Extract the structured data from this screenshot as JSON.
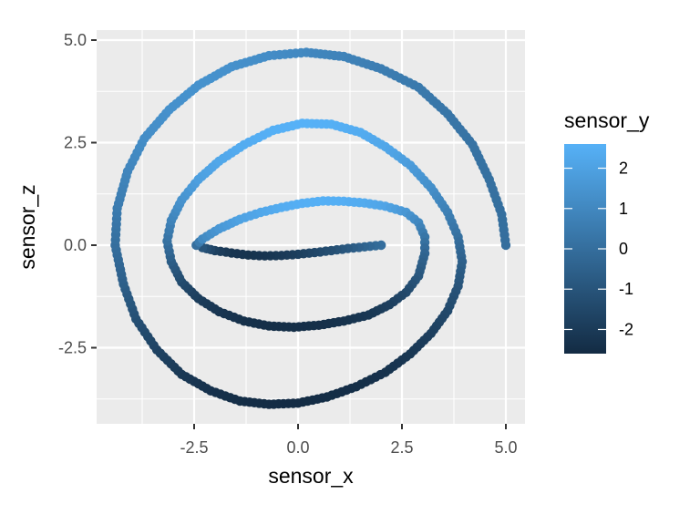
{
  "chart_data": {
    "type": "scatter",
    "xlabel": "sensor_x",
    "ylabel": "sensor_z",
    "xlim": [
      -4.6,
      5.5
    ],
    "ylim": [
      -4.3,
      5.1
    ],
    "x_ticks": [
      -2.5,
      0.0,
      2.5,
      5.0
    ],
    "x_tick_labels": [
      "-2.5",
      "0.0",
      "2.5",
      "5.0"
    ],
    "y_ticks": [
      -2.5,
      0.0,
      2.5,
      5.0
    ],
    "y_tick_labels": [
      "-2.5",
      "0.0",
      "2.5",
      "5.0"
    ],
    "grid": true,
    "legend": {
      "title": "sensor_y",
      "placement": "right",
      "type": "colorbar",
      "range": [
        -2.6,
        2.6
      ],
      "ticks": [
        2,
        1,
        0,
        -1,
        -2
      ],
      "tick_labels": [
        "2",
        "1",
        "0",
        "-1",
        "-2"
      ],
      "low_color": "#132b43",
      "high_color": "#56b1f7"
    },
    "panel_background": "#ebebeb",
    "series": [
      {
        "description_points_generated": false,
        "points": [
          [
            2.0,
            0.0,
            0.0
          ],
          [
            1.6,
            -0.04,
            -0.4
          ],
          [
            1.2,
            -0.08,
            -0.8
          ],
          [
            0.8,
            -0.13,
            -1.2
          ],
          [
            0.4,
            -0.18,
            -1.5
          ],
          [
            0.0,
            -0.22,
            -1.8
          ],
          [
            -0.4,
            -0.25,
            -2.0
          ],
          [
            -0.8,
            -0.26,
            -2.2
          ],
          [
            -1.2,
            -0.24,
            -2.3
          ],
          [
            -1.6,
            -0.19,
            -2.2
          ],
          [
            -2.0,
            -0.13,
            -1.8
          ],
          [
            -2.3,
            -0.06,
            -1.0
          ],
          [
            -2.45,
            0.0,
            0.0
          ],
          [
            -2.3,
            0.15,
            1.0
          ],
          [
            -1.9,
            0.4,
            1.6
          ],
          [
            -1.4,
            0.63,
            2.0
          ],
          [
            -0.9,
            0.8,
            2.2
          ],
          [
            -0.4,
            0.92,
            2.4
          ],
          [
            0.1,
            1.02,
            2.5
          ],
          [
            0.6,
            1.08,
            2.55
          ],
          [
            1.1,
            1.07,
            2.5
          ],
          [
            1.6,
            1.03,
            2.35
          ],
          [
            2.1,
            0.95,
            2.1
          ],
          [
            2.6,
            0.8,
            1.6
          ],
          [
            2.9,
            0.55,
            1.0
          ],
          [
            3.05,
            0.2,
            0.3
          ],
          [
            3.05,
            -0.2,
            -0.3
          ],
          [
            2.9,
            -0.75,
            -0.9
          ],
          [
            2.6,
            -1.15,
            -1.4
          ],
          [
            2.2,
            -1.45,
            -1.8
          ],
          [
            1.7,
            -1.7,
            -2.1
          ],
          [
            1.1,
            -1.85,
            -2.3
          ],
          [
            0.5,
            -1.95,
            -2.4
          ],
          [
            -0.1,
            -2.0,
            -2.45
          ],
          [
            -0.7,
            -1.97,
            -2.45
          ],
          [
            -1.3,
            -1.85,
            -2.4
          ],
          [
            -1.9,
            -1.62,
            -2.2
          ],
          [
            -2.4,
            -1.3,
            -1.9
          ],
          [
            -2.8,
            -0.9,
            -1.4
          ],
          [
            -3.05,
            -0.4,
            -0.7
          ],
          [
            -3.15,
            0.1,
            0.1
          ],
          [
            -3.05,
            0.6,
            0.8
          ],
          [
            -2.8,
            1.1,
            1.4
          ],
          [
            -2.4,
            1.6,
            1.9
          ],
          [
            -1.9,
            2.05,
            2.2
          ],
          [
            -1.3,
            2.45,
            2.4
          ],
          [
            -0.6,
            2.8,
            2.55
          ],
          [
            0.1,
            2.97,
            2.6
          ],
          [
            0.8,
            2.95,
            2.55
          ],
          [
            1.5,
            2.75,
            2.4
          ],
          [
            2.1,
            2.4,
            2.2
          ],
          [
            2.7,
            1.95,
            1.8
          ],
          [
            3.2,
            1.4,
            1.3
          ],
          [
            3.6,
            0.8,
            0.7
          ],
          [
            3.85,
            0.2,
            0.1
          ],
          [
            3.95,
            -0.4,
            -0.5
          ],
          [
            3.85,
            -1.0,
            -1.0
          ],
          [
            3.6,
            -1.6,
            -1.4
          ],
          [
            3.2,
            -2.15,
            -1.8
          ],
          [
            2.7,
            -2.65,
            -2.1
          ],
          [
            2.1,
            -3.1,
            -2.3
          ],
          [
            1.4,
            -3.45,
            -2.45
          ],
          [
            0.7,
            -3.7,
            -2.5
          ],
          [
            0.0,
            -3.85,
            -2.55
          ],
          [
            -0.7,
            -3.88,
            -2.55
          ],
          [
            -1.4,
            -3.8,
            -2.5
          ],
          [
            -2.1,
            -3.55,
            -2.35
          ],
          [
            -2.8,
            -3.15,
            -2.1
          ],
          [
            -3.4,
            -2.55,
            -1.7
          ],
          [
            -3.9,
            -1.8,
            -1.2
          ],
          [
            -4.2,
            -0.95,
            -0.6
          ],
          [
            -4.4,
            0.0,
            0.0
          ],
          [
            -4.35,
            0.9,
            0.5
          ],
          [
            -4.1,
            1.8,
            0.9
          ],
          [
            -3.7,
            2.6,
            1.2
          ],
          [
            -3.1,
            3.3,
            1.35
          ],
          [
            -2.4,
            3.9,
            1.4
          ],
          [
            -1.6,
            4.35,
            1.35
          ],
          [
            -0.7,
            4.62,
            1.2
          ],
          [
            0.2,
            4.7,
            1.0
          ],
          [
            1.1,
            4.6,
            0.8
          ],
          [
            2.0,
            4.3,
            0.6
          ],
          [
            2.9,
            3.85,
            0.45
          ],
          [
            3.6,
            3.2,
            0.3
          ],
          [
            4.2,
            2.45,
            0.2
          ],
          [
            4.6,
            1.6,
            0.1
          ],
          [
            4.9,
            0.75,
            0.05
          ],
          [
            5.0,
            0.0,
            0.0
          ]
        ]
      }
    ]
  }
}
